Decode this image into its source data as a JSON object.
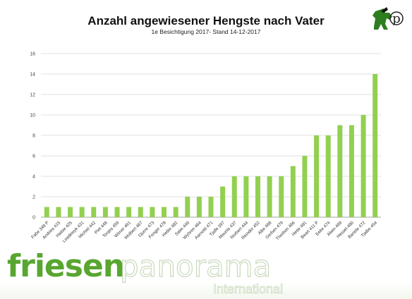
{
  "chart_data": {
    "type": "bar",
    "title": "Anzahl angewiesener Hengste nach Vater",
    "subtitle": "1e Besichtigung 2017- Stand 14-12-2017",
    "categories": [
      "Fabe 348 P",
      "Andries 415",
      "Haitse 425",
      "Loadewyk 431",
      "Michiel 442",
      "Piet 448",
      "Tonjes 459",
      "Wimer 461",
      "Wolbert 467",
      "Djurre 473",
      "Fonger 478",
      "Hetke 482",
      "Sake 449",
      "Wyhren 464",
      "Aarnold 471",
      "Tjalfe 397",
      "Maurits 437",
      "Norbert 444",
      "Reinder 452",
      "Alke 468",
      "Gerben 479",
      "Thorben 466",
      "Hette 481",
      "Beart 411 P",
      "Eeke 474",
      "Alwin 469",
      "Hessel 480",
      "Bartele 472",
      "Tjalbe 454"
    ],
    "values": [
      1,
      1,
      1,
      1,
      1,
      1,
      1,
      1,
      1,
      1,
      1,
      1,
      2,
      2,
      2,
      3,
      4,
      4,
      4,
      4,
      4,
      5,
      6,
      8,
      8,
      9,
      9,
      10,
      14
    ],
    "ylim": [
      0,
      16
    ],
    "yticks": [
      0,
      2,
      4,
      6,
      8,
      10,
      12,
      14,
      16
    ],
    "grid": true,
    "legend": "none",
    "colors": {
      "bar": "#92d050",
      "grid": "#d9d9d9",
      "axis": "#888888"
    }
  },
  "brand": {
    "part1": "friesen",
    "part2": "panorama",
    "part3": "International",
    "colors": {
      "green": "#58a630",
      "light": "#d7e6c9"
    }
  },
  "logo": {
    "letter": "p",
    "icon": "horse-logo-icon"
  }
}
